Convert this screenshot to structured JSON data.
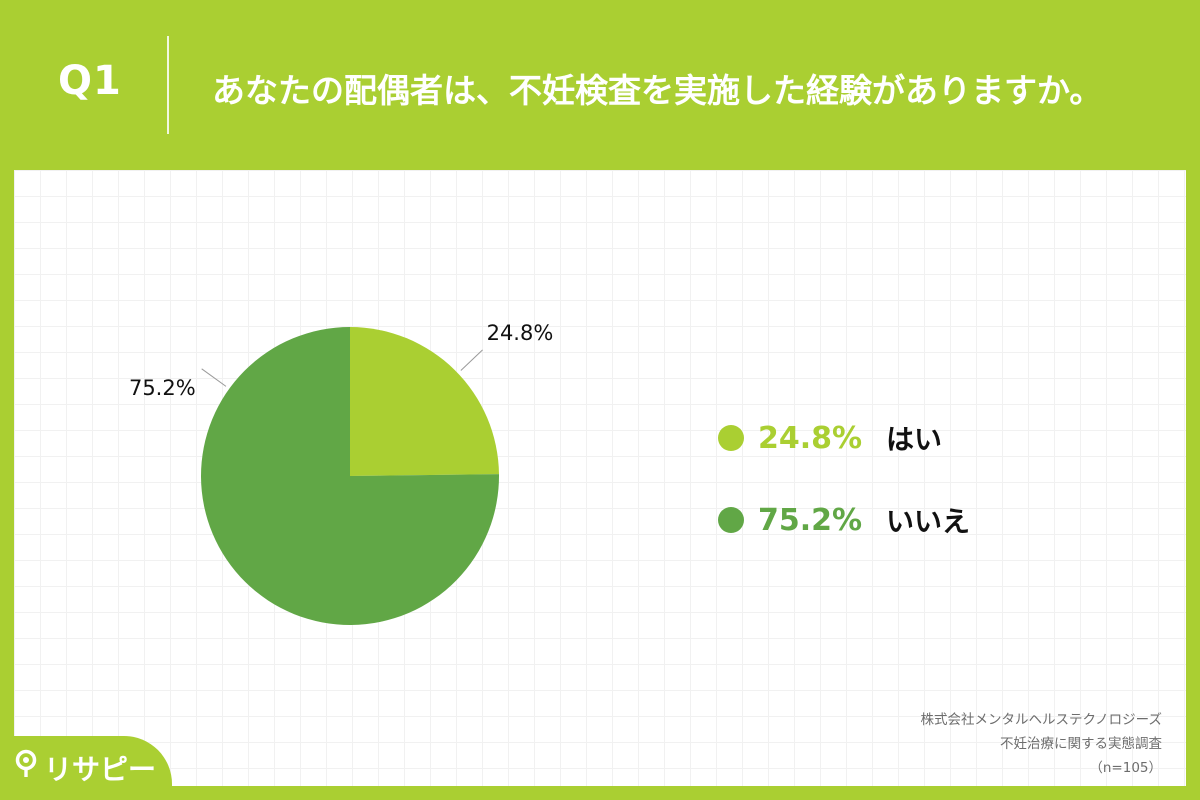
{
  "header": {
    "question_number": "Q1",
    "question_text": "あなたの配偶者は、不妊検査を実施した経験がありますか。"
  },
  "chart_data": {
    "type": "pie",
    "categories": [
      "はい",
      "いいえ"
    ],
    "values": [
      24.8,
      75.2
    ],
    "value_labels": [
      "24.8%",
      "75.2%"
    ],
    "colors": [
      "#aacf32",
      "#61a746"
    ],
    "legend_position": "right",
    "title": "",
    "xlabel": "",
    "ylabel": ""
  },
  "legend": {
    "items": [
      {
        "value": "24.8%",
        "label": "はい",
        "color": "#aacf32"
      },
      {
        "value": "75.2%",
        "label": "いいえ",
        "color": "#61a746"
      }
    ]
  },
  "source": {
    "company": "株式会社メンタルヘルステクノロジーズ",
    "survey": "不妊治療に関する実態調査",
    "sample": "（n=105）"
  },
  "logo": {
    "text": "リサピー",
    "icon": "pin-icon"
  },
  "colors": {
    "brand_green": "#aacf32",
    "dark_green": "#61a746"
  }
}
